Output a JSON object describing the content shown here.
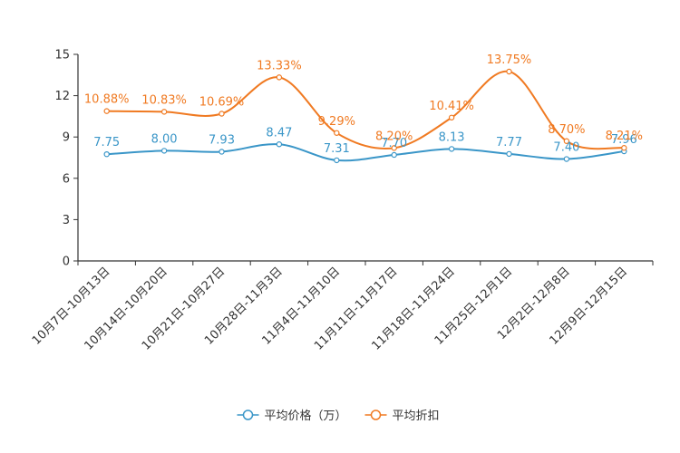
{
  "chart_data": {
    "type": "line",
    "categories": [
      "10月7日-10月13日",
      "10月14日-10月20日",
      "10月21日-10月27日",
      "10月28日-11月3日",
      "11月4日-11月10日",
      "11月11日-11月17日",
      "11月18日-11月24日",
      "11月25日-12月1日",
      "12月2日-12月8日",
      "12月9日-12月15日"
    ],
    "series": [
      {
        "name": "平均价格（万）",
        "color": "#3a96c8",
        "values": [
          7.75,
          8.0,
          7.93,
          8.47,
          7.31,
          7.7,
          8.13,
          7.77,
          7.4,
          7.96
        ],
        "labels": [
          "7.75",
          "8.00",
          "7.93",
          "8.47",
          "7.31",
          "7.70",
          "8.13",
          "7.77",
          "7.40",
          "7.96"
        ]
      },
      {
        "name": "平均折扣",
        "color": "#f07a22",
        "values": [
          10.88,
          10.83,
          10.69,
          13.33,
          9.29,
          8.2,
          10.41,
          13.75,
          8.7,
          8.21
        ],
        "labels": [
          "10.88%",
          "10.83%",
          "10.69%",
          "13.33%",
          "9.29%",
          "8.20%",
          "10.41%",
          "13.75%",
          "8.70%",
          "8.21%"
        ]
      }
    ],
    "y_axis": {
      "min": 0,
      "max": 15,
      "ticks": [
        "0",
        "3",
        "6",
        "9",
        "12",
        "15"
      ]
    },
    "legend_position": "bottom-center",
    "grid": false
  }
}
